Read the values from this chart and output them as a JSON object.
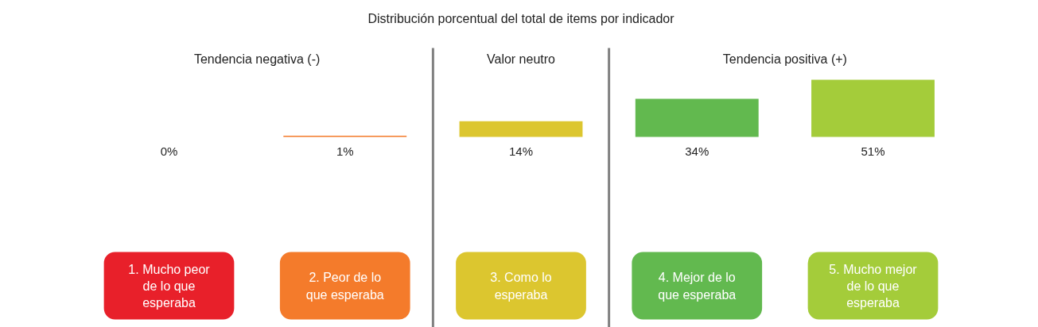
{
  "chart_data": {
    "type": "bar",
    "title": "Distribución porcentual del total de items por indicador",
    "categories": [
      "1. Mucho peor de lo que esperaba",
      "2. Peor de lo que esperaba",
      "3. Como lo esperaba",
      "4. Mejor de lo que esperaba",
      "5. Mucho mejor de lo que esperaba"
    ],
    "values": [
      0,
      1,
      14,
      34,
      51
    ],
    "colors": [
      "#e8202a",
      "#f47b2b",
      "#dcc62f",
      "#62b94f",
      "#a4cc3a"
    ],
    "value_labels": [
      "0%",
      "1%",
      "14%",
      "34%",
      "51%"
    ],
    "annotations": [
      "Tendencia negativa (-)",
      "Valor neutro",
      "Tendencia positiva (+)"
    ]
  }
}
